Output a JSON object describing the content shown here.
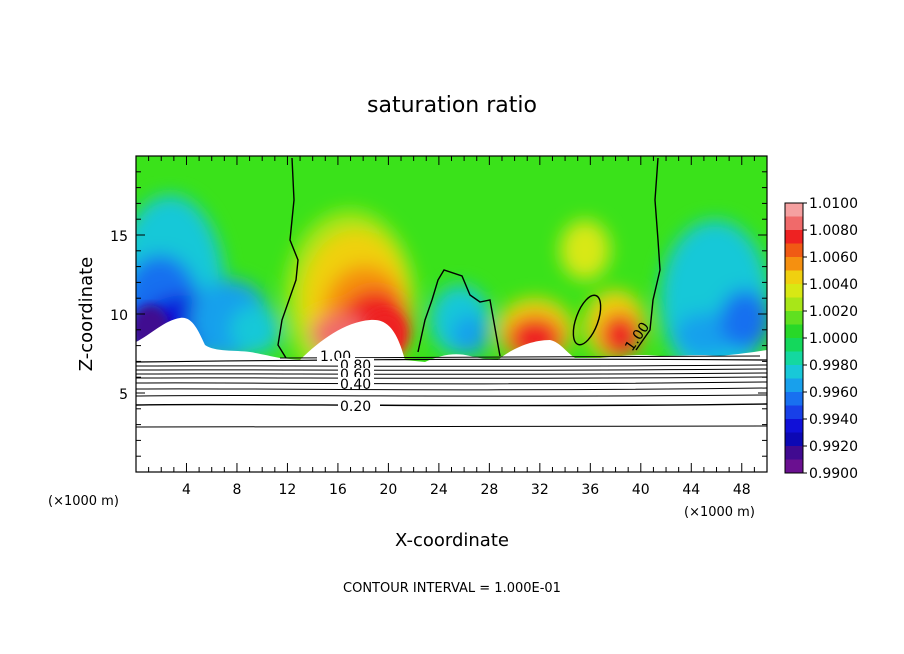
{
  "chart_data": {
    "type": "heatmap",
    "title": "saturation ratio",
    "xlabel": "X-coordinate",
    "ylabel": "Z-coordinate",
    "x_unit_label": "(×1000 m)",
    "x_unit_label_right": "(×1000 m)",
    "xlim": [
      0,
      50
    ],
    "ylim": [
      0,
      20
    ],
    "x_ticks": [
      4,
      8,
      12,
      16,
      20,
      24,
      28,
      32,
      36,
      40,
      44,
      48
    ],
    "y_ticks": [
      5,
      10,
      15
    ],
    "colorbar": {
      "levels": [
        "1.0100",
        "1.0080",
        "1.0060",
        "1.0040",
        "1.0020",
        "1.0000",
        "0.9980",
        "0.9960",
        "0.9940",
        "0.9920",
        "0.9900"
      ],
      "colors": [
        "#f5a0a0",
        "#f06a6a",
        "#ee2222",
        "#f05a14",
        "#f59010",
        "#f0d010",
        "#d8e814",
        "#a8e618",
        "#60e020",
        "#28d828",
        "#14d85c",
        "#14d8a0",
        "#18c8d8",
        "#18a0ec",
        "#1870f0",
        "#1840e8",
        "#1010d8",
        "#0c08b4",
        "#400a90",
        "#6a1090"
      ]
    },
    "contour_labels": [
      "1.00",
      "0.80",
      "0.60",
      "0.40",
      "0.20",
      "1.00"
    ],
    "contour_interval_note": "CONTOUR INTERVAL = 1.000E-01"
  }
}
